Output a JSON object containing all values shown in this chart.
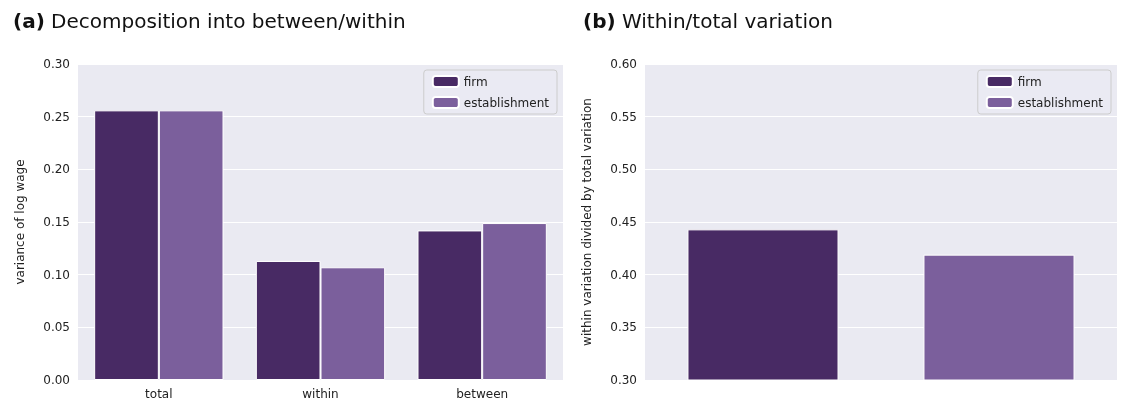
{
  "chart_data": [
    {
      "type": "bar",
      "title": "(a) Decomposition into between/within",
      "ylabel": "variance of log wage",
      "categories": [
        "total",
        "within",
        "between"
      ],
      "series": [
        {
          "name": "firm",
          "color": "#482a64",
          "values": [
            0.256,
            0.113,
            0.142
          ]
        },
        {
          "name": "establishment",
          "color": "#7b5f9c",
          "values": [
            0.256,
            0.107,
            0.149
          ]
        }
      ],
      "ylim": [
        0,
        0.3
      ],
      "yticks": [
        {
          "value": 0,
          "label": "0.00"
        },
        {
          "value": 0.05,
          "label": "0.05"
        },
        {
          "value": 0.1,
          "label": "0.10"
        },
        {
          "value": 0.15,
          "label": "0.15"
        },
        {
          "value": 0.2,
          "label": "0.20"
        },
        {
          "value": 0.25,
          "label": "0.25"
        },
        {
          "value": 0.3,
          "label": "0.30"
        }
      ],
      "grid": "y",
      "legend": "top right"
    },
    {
      "type": "bar",
      "title": "(b) Within/total variation",
      "ylabel": "within variation divided by total variation",
      "categories": [
        null,
        null
      ],
      "stacked": true,
      "series": [
        {
          "name": "firm",
          "color": "#482a64",
          "values": [
            0.443,
            null
          ]
        },
        {
          "name": "establishment",
          "color": "#7b5f9c",
          "values": [
            null,
            0.419
          ]
        }
      ],
      "ylim": [
        0.3,
        0.6
      ],
      "yticks": [
        {
          "value": 0.3,
          "label": "0.30"
        },
        {
          "value": 0.35,
          "label": "0.35"
        },
        {
          "value": 0.4,
          "label": "0.40"
        },
        {
          "value": 0.45,
          "label": "0.45"
        },
        {
          "value": 0.5,
          "label": "0.50"
        },
        {
          "value": 0.55,
          "label": "0.55"
        },
        {
          "value": 0.6,
          "label": "0.60"
        }
      ],
      "grid": "y",
      "legend": "top right"
    }
  ]
}
